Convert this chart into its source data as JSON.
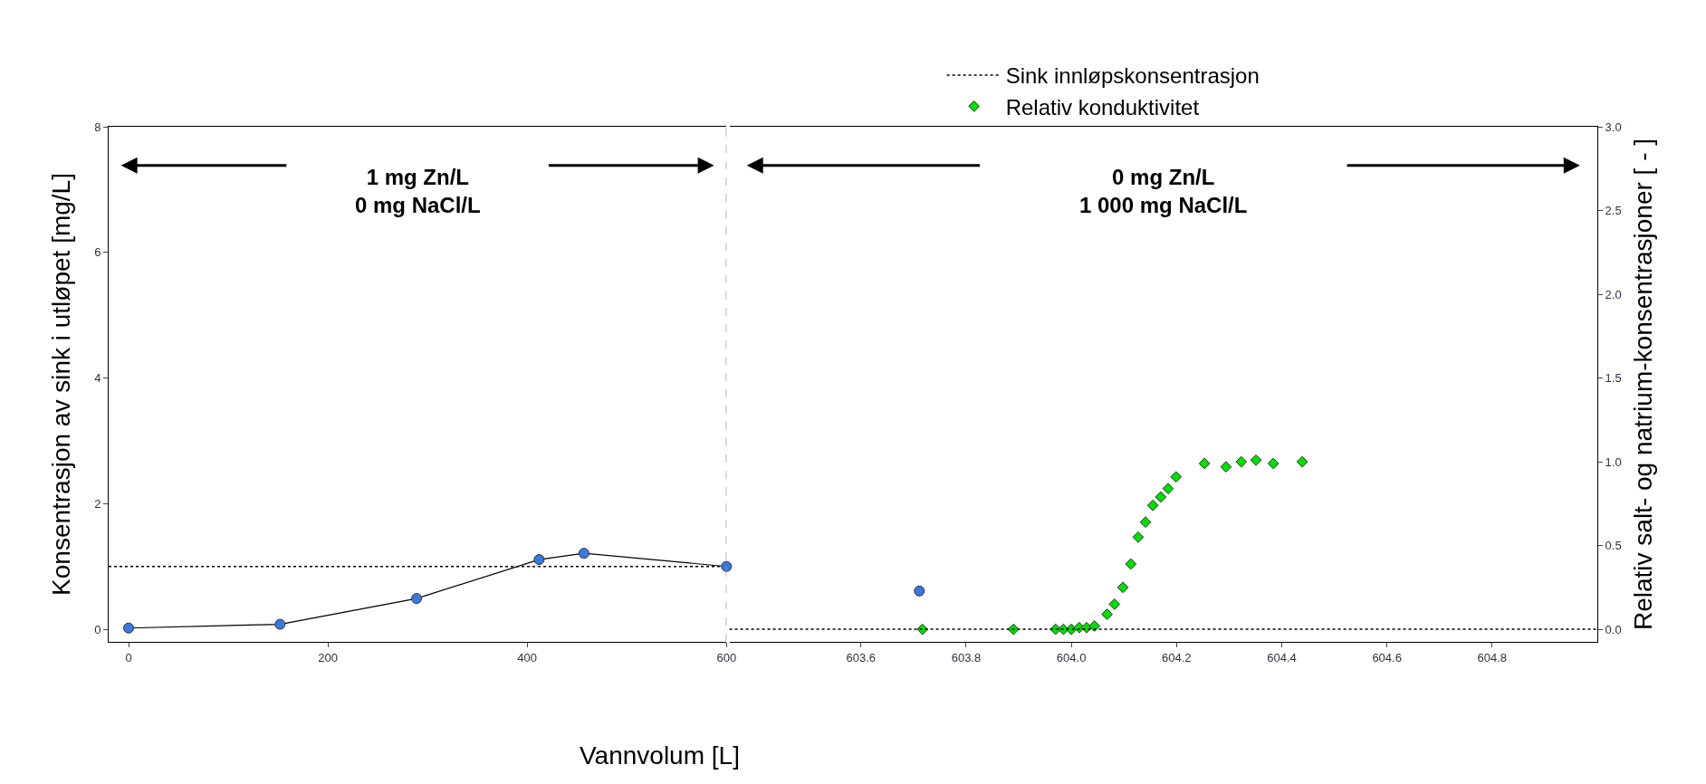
{
  "chart_data": [
    {
      "type": "line",
      "xlabel": "Vannvolum [L]",
      "ylabel": "Konsentrasjon av sink i utløpet [mg/L]",
      "xlim": [
        -20,
        600
      ],
      "xticks": [
        0,
        200,
        400,
        600
      ],
      "ylim": [
        -0.2,
        8
      ],
      "yticks": [
        0,
        2,
        4,
        6,
        8
      ],
      "series": [
        {
          "color": "#3a78e0",
          "marker": "circle",
          "x": [
            0,
            152,
            289,
            412,
            457,
            600
          ],
          "values": [
            0.02,
            0.08,
            0.49,
            1.11,
            1.21,
            1.0
          ]
        }
      ],
      "ref_lines": [
        {
          "axis": "y",
          "value": 1,
          "label": "Sink innløpskonsentrasjon",
          "line_style": "dotted",
          "color": "#000000"
        },
        {
          "axis": "x",
          "value": 600,
          "line_style": "dashed",
          "color": "#a0a0a0"
        }
      ],
      "annotations": [
        "1 mg Zn/L\n0 mg NaCl/L"
      ]
    },
    {
      "type": "line",
      "y2label": "Relativ salt- og natrium-konsentrasjoner [ - ]",
      "xlim": [
        603.35,
        605.0
      ],
      "xticks": [
        603.6,
        603.8,
        {
          "value": 604,
          "label": "604.0"
        },
        604.2,
        604.4,
        604.6,
        604.8
      ],
      "ylim": [
        -0.2,
        8
      ],
      "y2lim": [
        -0.075,
        3.0
      ],
      "y2ticks": [
        {
          "value": 0,
          "label": "0.0"
        },
        {
          "value": 0.5,
          "label": "0.5"
        },
        {
          "value": 1,
          "label": "1.0"
        },
        {
          "value": 1.5,
          "label": "1.5"
        },
        {
          "value": 2,
          "label": "2.0"
        },
        {
          "value": 2.5,
          "label": "2.5"
        },
        {
          "value": 3,
          "label": "3.0"
        }
      ],
      "tick_labels": "x",
      "series": [
        {
          "color": "#3a78e0",
          "marker": "circle",
          "x": [
            603.711
          ],
          "values": [
            0.61
          ]
        },
        {
          "type": "scatter",
          "axis": "y2",
          "name": "Relativ konduktivitet",
          "color": "#00e000",
          "marker": "diamond",
          "x": [
            603.717,
            603.89,
            603.97,
            603.985,
            604.0,
            604.015,
            604.029,
            604.044,
            604.068,
            604.082,
            604.098,
            604.113,
            604.127,
            604.141,
            604.155,
            604.17,
            604.184,
            604.199,
            604.253,
            604.294,
            604.323,
            604.351,
            604.384,
            604.439
          ],
          "values": [
            0,
            0,
            0,
            0,
            0,
            0.01,
            0.01,
            0.02,
            0.09,
            0.15,
            0.25,
            0.39,
            0.55,
            0.64,
            0.74,
            0.79,
            0.84,
            0.91,
            0.99,
            0.97,
            1.0,
            1.01,
            0.99,
            1.0
          ]
        }
      ],
      "ref_lines": [
        {
          "axis": "y2",
          "value": 0,
          "line_style": "dotted",
          "color": "#000000"
        }
      ],
      "annotations": [
        "0 mg Zn/L\n1 000 mg NaCl/L"
      ],
      "legend": "top"
    }
  ]
}
